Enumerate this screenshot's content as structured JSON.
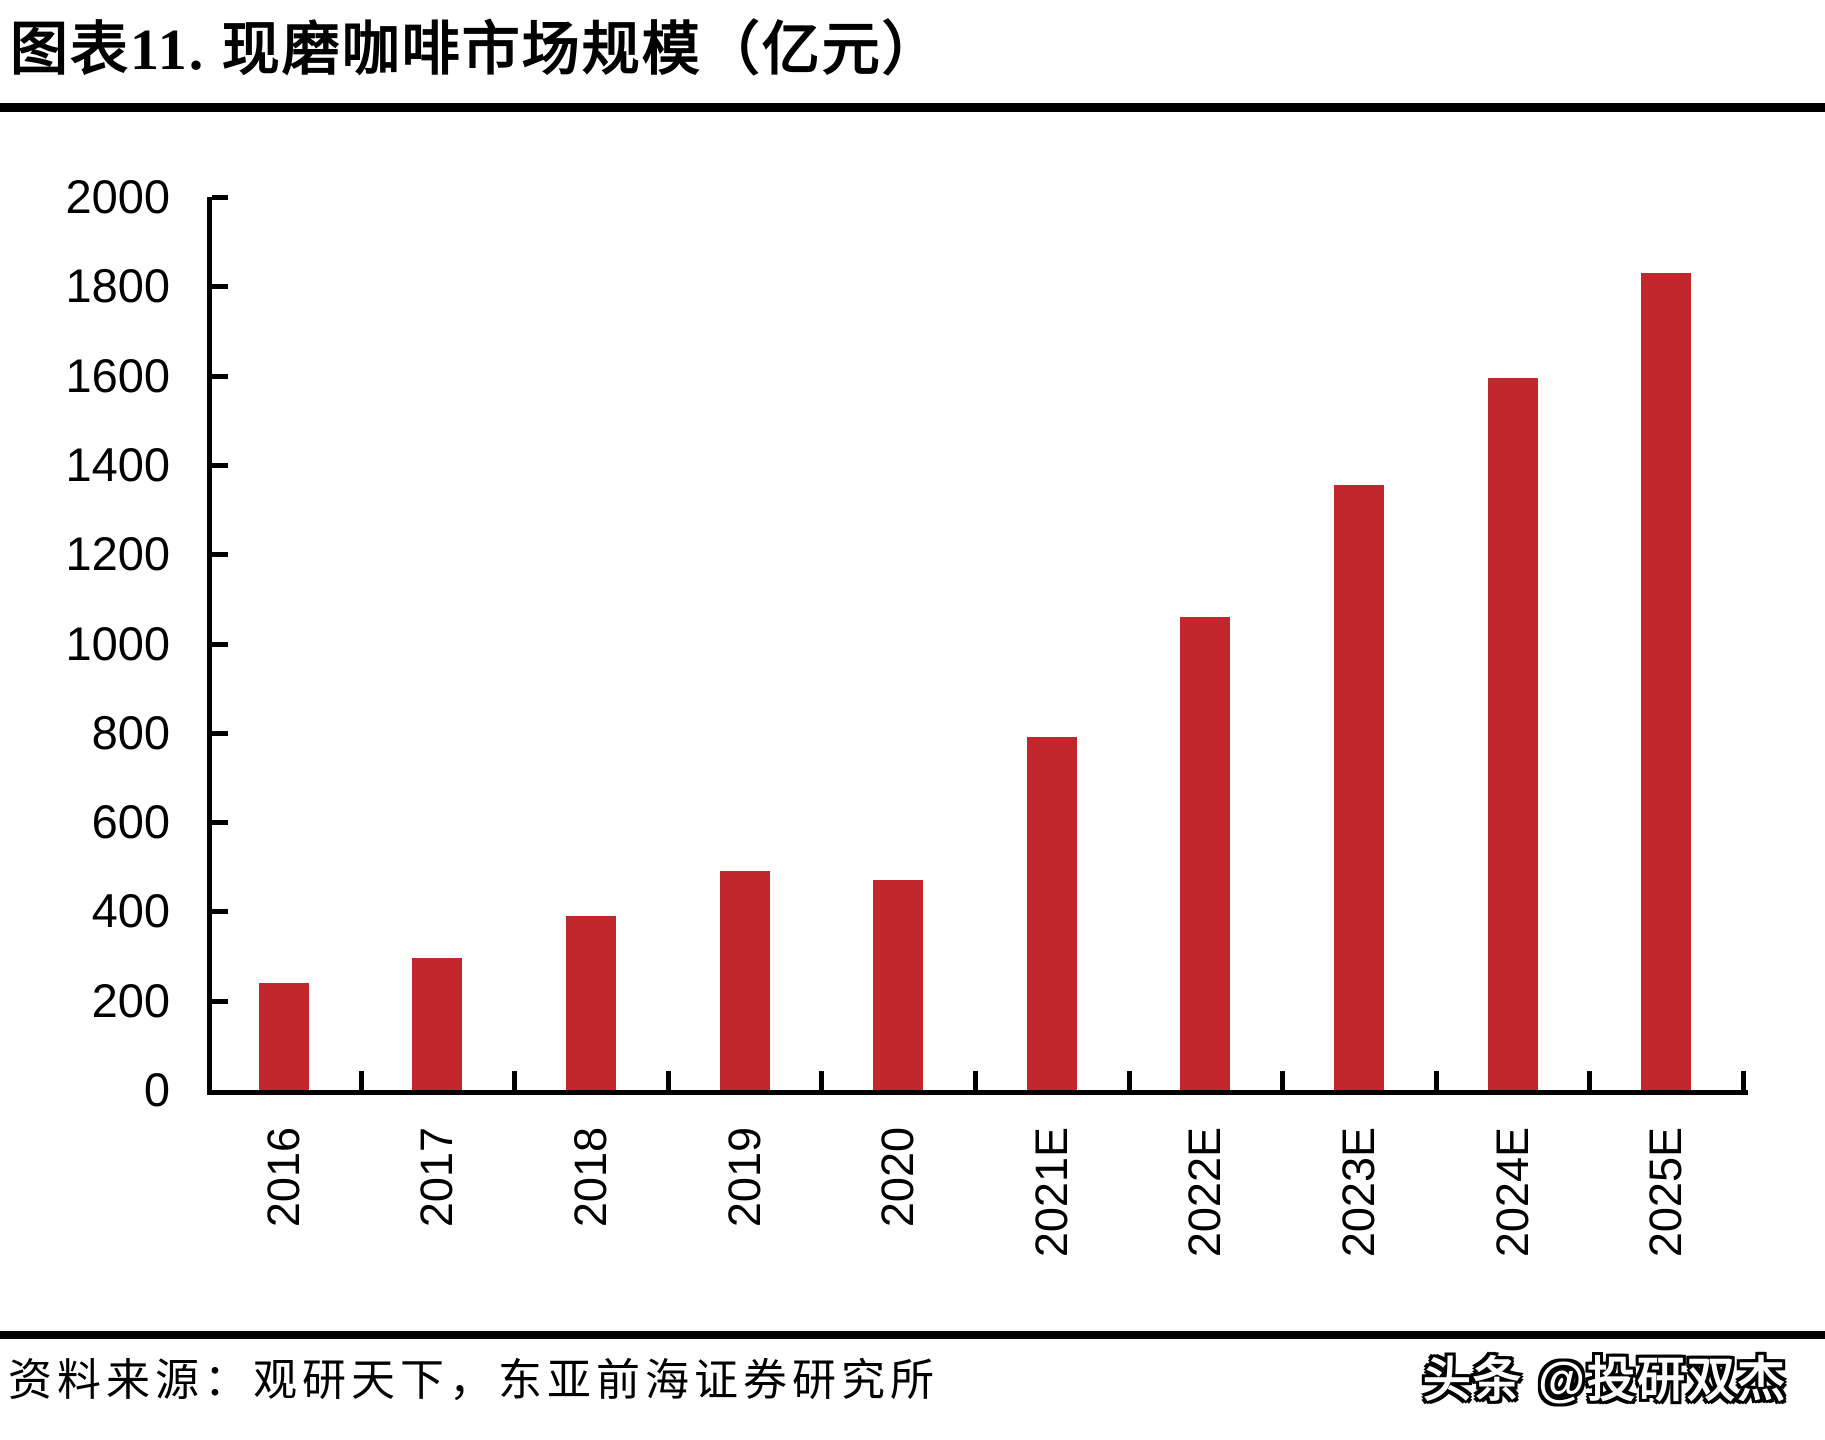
{
  "page": {
    "title": "图表11.  现磨咖啡市场规模（亿元）",
    "source": "资料来源：观研天下，东亚前海证券研究所",
    "watermark": "头条 @投研双杰"
  },
  "chart_data": {
    "type": "bar",
    "title": "现磨咖啡市场规模（亿元）",
    "categories": [
      "2016",
      "2017",
      "2018",
      "2019",
      "2020",
      "2021E",
      "2022E",
      "2023E",
      "2024E",
      "2025E"
    ],
    "values": [
      240,
      295,
      390,
      490,
      470,
      790,
      1060,
      1355,
      1595,
      1830
    ],
    "xlabel": "",
    "ylabel": "",
    "ylim": [
      0,
      2000
    ],
    "ytick_step": 200,
    "grid": false,
    "legend": "none",
    "bar_color": "#c2272d",
    "axis_color": "#000000"
  }
}
